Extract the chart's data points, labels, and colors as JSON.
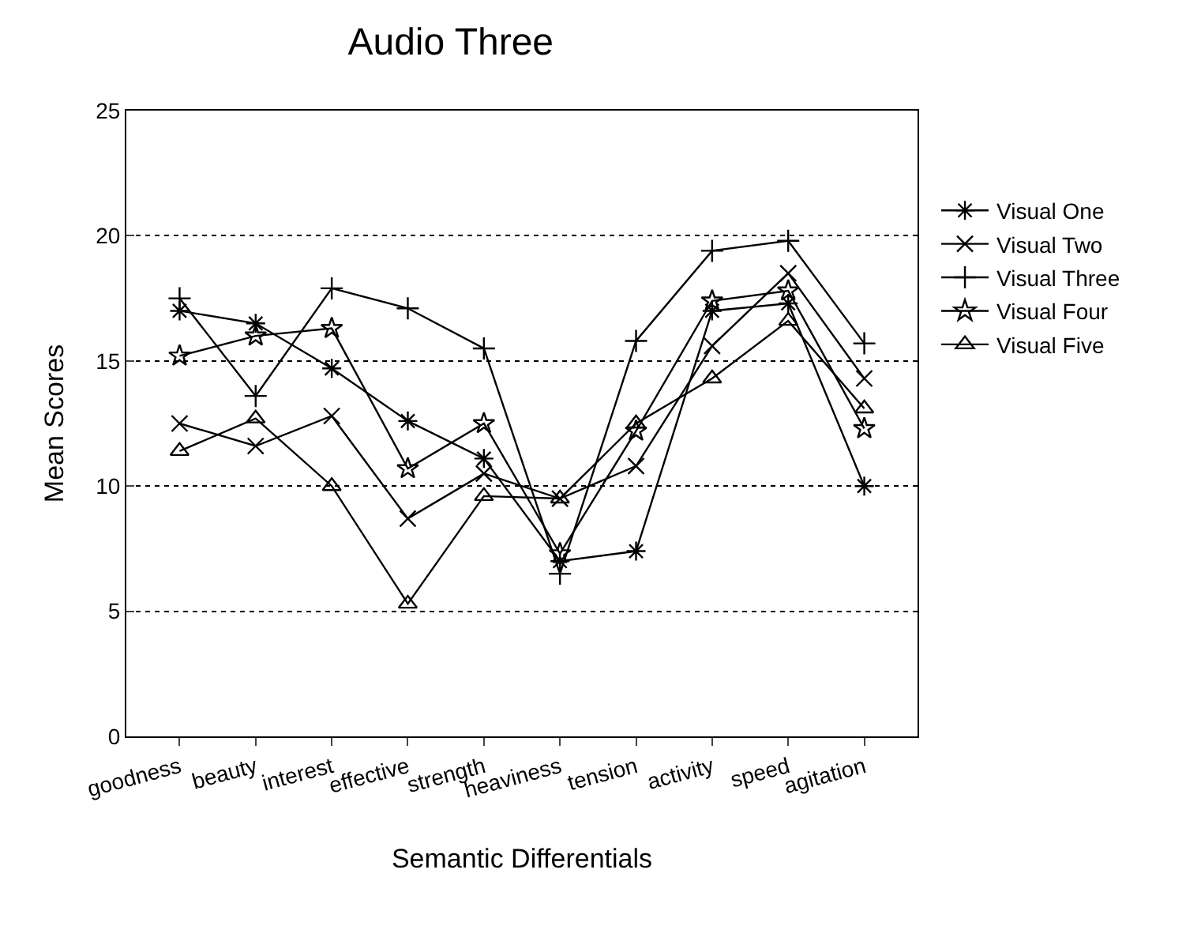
{
  "chart_data": {
    "type": "line",
    "title": "Audio Three",
    "xlabel": "Semantic Differentials",
    "ylabel": "Mean Scores",
    "categories": [
      "goodness",
      "beauty",
      "interest",
      "effective",
      "strength",
      "heaviness",
      "tension",
      "activity",
      "speed",
      "agitation"
    ],
    "series": [
      {
        "name": "Visual One",
        "color": "#000000",
        "marker": "cross",
        "values": [
          17.0,
          16.5,
          14.7,
          12.6,
          11.1,
          7.0,
          7.4,
          17.0,
          17.3,
          10.0
        ]
      },
      {
        "name": "Visual Two",
        "color": "#000000",
        "marker": "cross",
        "values": [
          12.5,
          11.6,
          12.8,
          8.7,
          10.5,
          9.5,
          10.8,
          15.6,
          18.5,
          14.3
        ]
      },
      {
        "name": "Visual Three",
        "color": "#000000",
        "marker": "cross",
        "values": [
          17.5,
          13.6,
          17.9,
          17.1,
          15.5,
          6.5,
          15.8,
          19.4,
          19.8,
          15.7
        ]
      },
      {
        "name": "Visual Four",
        "color": "#000000",
        "marker": "star",
        "values": [
          15.2,
          16.0,
          16.3,
          10.7,
          12.5,
          7.3,
          12.2,
          17.4,
          17.8,
          12.3
        ]
      },
      {
        "name": "Visual Five",
        "color": "#000000",
        "marker": "triangle",
        "values": [
          11.4,
          12.7,
          10.0,
          5.3,
          9.6,
          9.5,
          12.5,
          14.3,
          16.6,
          13.1
        ]
      }
    ],
    "ylim": [
      0,
      25
    ],
    "yticks": [
      0,
      5,
      10,
      15,
      20,
      25
    ],
    "grid": "y",
    "legend": "top right",
    "line_style": "solid"
  }
}
